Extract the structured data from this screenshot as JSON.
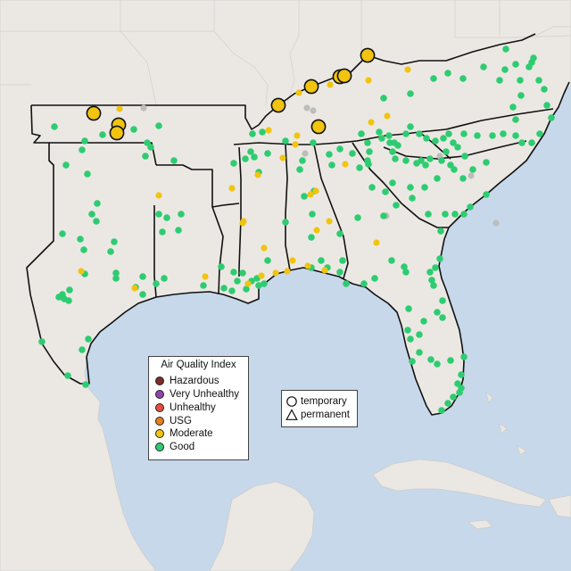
{
  "legend": {
    "title": "Air Quality Index",
    "categories": [
      {
        "label": "Hazardous",
        "color": "#7e2b2b"
      },
      {
        "label": "Very Unhealthy",
        "color": "#8e44ad"
      },
      {
        "label": "Unhealthy",
        "color": "#e74c3c"
      },
      {
        "label": "USG",
        "color": "#e67e22"
      },
      {
        "label": "Moderate",
        "color": "#f1c40f"
      },
      {
        "label": "Good",
        "color": "#2ecc71"
      }
    ]
  },
  "site_legend": {
    "temporary": "temporary",
    "permanent": "permanent"
  },
  "colors": {
    "water": "#c6d8ea",
    "land": "#ebe8e4",
    "good": "#2ecc71",
    "moderate": "#f1c40f",
    "no_data": "#bdbdbd"
  },
  "monitors": {
    "temporary_moderate_large": [
      [
        105,
        127
      ],
      [
        133,
        140
      ],
      [
        131,
        149
      ],
      [
        312,
        118
      ],
      [
        349,
        97
      ],
      [
        381,
        86
      ],
      [
        386,
        85
      ],
      [
        412,
        62
      ],
      [
        357,
        142
      ]
    ]
  }
}
